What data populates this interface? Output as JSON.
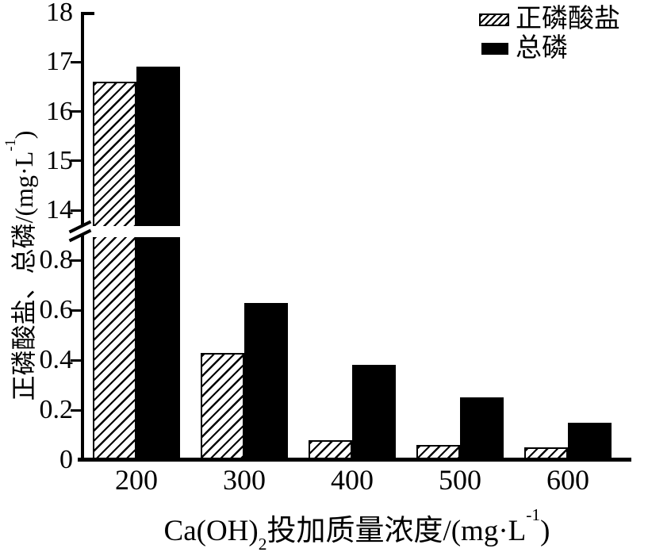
{
  "chart_data": {
    "type": "bar",
    "title": "",
    "categories": [
      "200",
      "300",
      "400",
      "500",
      "600"
    ],
    "series": [
      {
        "key": "orthophosphate",
        "name": "正磷酸盐",
        "pattern": "hatched",
        "values": [
          16.6,
          0.43,
          0.08,
          0.06,
          0.05
        ]
      },
      {
        "key": "total-phosphorus",
        "name": "总磷",
        "pattern": "solid-black",
        "values": [
          16.9,
          0.63,
          0.38,
          0.25,
          0.15
        ]
      }
    ],
    "xlabel": "Ca(OH)2投加质量浓度/(mg·L-1)",
    "ylabel": "正磷酸盐、总磷/(mg·L-1)",
    "y_axis": {
      "broken_axis": true,
      "top_band": {
        "range": [
          13.7,
          18.05
        ],
        "major_ticks": [
          18,
          17,
          16,
          15,
          14
        ]
      },
      "bottom_band": {
        "range": [
          0,
          0.89
        ],
        "major_ticks": [
          0.8,
          0.6,
          0.4,
          0.2,
          0
        ]
      }
    },
    "x_axis": {
      "tick_labels": [
        "200",
        "300",
        "400",
        "500",
        "600"
      ]
    },
    "legend": {
      "position": "top-right",
      "entries": [
        "正磷酸盐",
        "总磷"
      ]
    },
    "grid": false,
    "colors": {
      "bar_fill": "#000000",
      "hatch": "#000000",
      "background": "#ffffff",
      "axis": "#000000"
    }
  },
  "labels": {
    "ylabel_pre": "正磷酸盐、总磷/(mg·L",
    "ylabel_sup": "-1",
    "ylabel_post": ")",
    "xlabel_pre": "Ca(OH)",
    "xlabel_sub": "2",
    "xlabel_mid": "投加质量浓度/(mg·L",
    "xlabel_sup": "-1",
    "xlabel_post": ")"
  }
}
